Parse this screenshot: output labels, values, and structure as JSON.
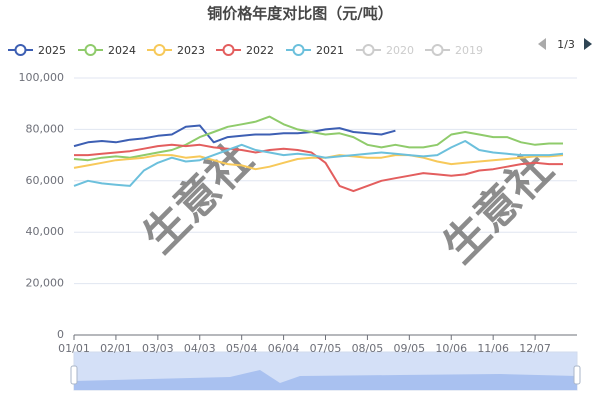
{
  "chart_data": {
    "type": "line",
    "title": "铜价格年度对比图（元/吨）",
    "legend_page": "1/3",
    "inactive_legend": [
      "2020",
      "2019"
    ],
    "watermark": "生意社",
    "categories": [
      "01/01",
      null,
      null,
      "02/01",
      null,
      null,
      "03/03",
      null,
      null,
      "04/03",
      null,
      null,
      "05/04",
      null,
      null,
      "06/04",
      null,
      null,
      "07/05",
      null,
      null,
      "08/05",
      null,
      null,
      "09/05",
      null,
      null,
      "10/06",
      null,
      null,
      "11/06",
      null,
      null,
      "12/07",
      null,
      null
    ],
    "ylim": [
      0,
      100000
    ],
    "yticks": [
      0,
      {
        "value": 20000,
        "label": "20,000"
      },
      {
        "value": 40000,
        "label": "40,000"
      },
      {
        "value": 60000,
        "label": "60,000"
      },
      {
        "value": 80000,
        "label": "80,000"
      },
      {
        "value": 100000,
        "label": "100,000"
      }
    ],
    "grid": true,
    "series": [
      {
        "name": "2025",
        "color": "#3d5fb3",
        "values": [
          73500,
          75000,
          75500,
          75000,
          76000,
          76500,
          77500,
          78000,
          81000,
          81500,
          75000,
          77000,
          77500,
          78000,
          78000,
          78500,
          78500,
          79000,
          80000,
          80500,
          79000,
          78500,
          78000,
          79500,
          null,
          null,
          null,
          null,
          null,
          null,
          null,
          null,
          null,
          null,
          null,
          null
        ]
      },
      {
        "name": "2024",
        "color": "#8fcb6b",
        "values": [
          68500,
          68000,
          69000,
          69500,
          69000,
          70000,
          71000,
          72000,
          74000,
          77000,
          79000,
          81000,
          82000,
          83000,
          85000,
          82000,
          80000,
          79000,
          78000,
          78500,
          77000,
          74000,
          73000,
          74000,
          73000,
          73000,
          74000,
          78000,
          79000,
          78000,
          77000,
          77000,
          75000,
          74000,
          74500,
          74500
        ]
      },
      {
        "name": "2023",
        "color": "#f7c95a",
        "values": [
          65000,
          66000,
          67000,
          68000,
          68500,
          69000,
          70000,
          70000,
          69000,
          69500,
          68000,
          66500,
          66000,
          64500,
          65500,
          67000,
          68500,
          69000,
          69000,
          70000,
          69500,
          69000,
          69000,
          70000,
          70000,
          69000,
          67500,
          66500,
          67000,
          67500,
          68000,
          68500,
          69000,
          69500,
          69500,
          70000
        ]
      },
      {
        "name": "2022",
        "color": "#e35e5e",
        "values": [
          70000,
          70000,
          70500,
          71000,
          71500,
          72500,
          73500,
          74000,
          73500,
          74000,
          73000,
          72500,
          72000,
          71000,
          72000,
          72500,
          72000,
          71000,
          67000,
          58000,
          56000,
          58000,
          60000,
          61000,
          62000,
          63000,
          62500,
          62000,
          62500,
          64000,
          64500,
          65500,
          66500,
          67000,
          66500,
          66500
        ]
      },
      {
        "name": "2021",
        "color": "#6cc0dc",
        "values": [
          58000,
          60000,
          59000,
          58500,
          58000,
          64000,
          67000,
          69000,
          67500,
          68000,
          70000,
          72000,
          74000,
          72000,
          71000,
          70000,
          70500,
          70000,
          69000,
          69500,
          70000,
          70500,
          71000,
          70500,
          70000,
          69500,
          70000,
          73000,
          75500,
          72000,
          71000,
          70500,
          70000,
          70000,
          70000,
          70500
        ]
      }
    ]
  }
}
